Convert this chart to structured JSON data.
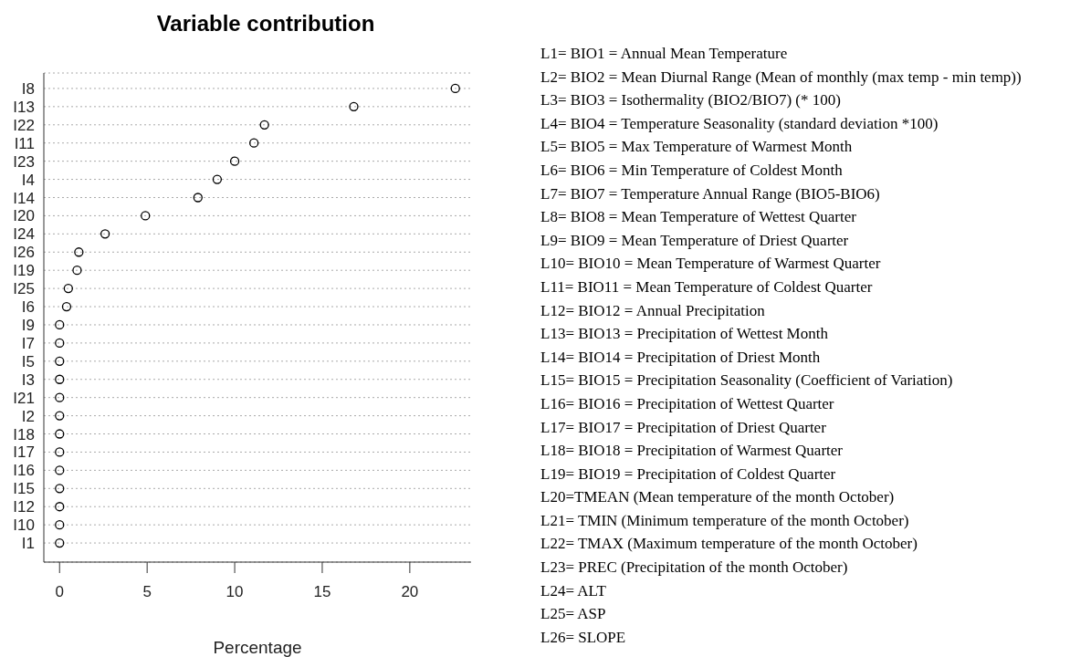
{
  "chart_data": {
    "type": "scatter",
    "title": "Variable contribution",
    "xlabel": "Percentage",
    "categories": [
      "I8",
      "I13",
      "I22",
      "I11",
      "I23",
      "I4",
      "I14",
      "I20",
      "I24",
      "I26",
      "I19",
      "I25",
      "I6",
      "I9",
      "I7",
      "I5",
      "I3",
      "I21",
      "I2",
      "I18",
      "I17",
      "I16",
      "I15",
      "I12",
      "I10",
      "I1"
    ],
    "series": [
      {
        "color": "#000000",
        "values": [
          22.6,
          16.8,
          11.7,
          11.1,
          10.0,
          9.0,
          7.9,
          4.9,
          2.6,
          1.1,
          1.0,
          0.5,
          0.4,
          0,
          0,
          0,
          0,
          0,
          0,
          0,
          0,
          0,
          0,
          0,
          0,
          0
        ]
      }
    ],
    "orientation": "horizontal",
    "xlim": [
      -0.9,
      23.5
    ],
    "xticks": [
      0,
      5,
      10,
      15,
      20
    ],
    "grid": "y",
    "marker": "circle",
    "legend": false,
    "annotations": [
      "L1= BIO1 = Annual Mean Temperature",
      "L2= BIO2 = Mean Diurnal Range (Mean of monthly (max temp - min temp))",
      "L3= BIO3 = Isothermality (BIO2/BIO7) (* 100)",
      "L4= BIO4 = Temperature Seasonality (standard deviation *100)",
      "L5= BIO5 = Max Temperature of Warmest Month",
      "L6= BIO6 = Min Temperature of Coldest Month",
      "L7= BIO7 = Temperature Annual Range (BIO5-BIO6)",
      "L8= BIO8 = Mean Temperature of Wettest Quarter",
      "L9= BIO9 = Mean Temperature of Driest Quarter",
      "L10= BIO10 = Mean Temperature of Warmest Quarter",
      "L11= BIO11 = Mean Temperature of Coldest Quarter",
      "L12= BIO12 = Annual Precipitation",
      "L13= BIO13 = Precipitation of Wettest Month",
      "L14= BIO14 = Precipitation of Driest Month",
      "L15= BIO15 = Precipitation Seasonality (Coefficient of Variation)",
      "L16= BIO16 = Precipitation of Wettest Quarter",
      "L17= BIO17 = Precipitation of Driest Quarter",
      "L18= BIO18 = Precipitation of Warmest Quarter",
      "L19= BIO19 = Precipitation of Coldest Quarter",
      "L20=TMEAN (Mean temperature of the month October)",
      "L21= TMIN (Minimum temperature of the month October)",
      "L22= TMAX (Maximum temperature of the month October)",
      "L23= PREC (Precipitation of the month October)",
      "L24= ALT",
      "L25= ASP",
      "L26= SLOPE"
    ]
  }
}
